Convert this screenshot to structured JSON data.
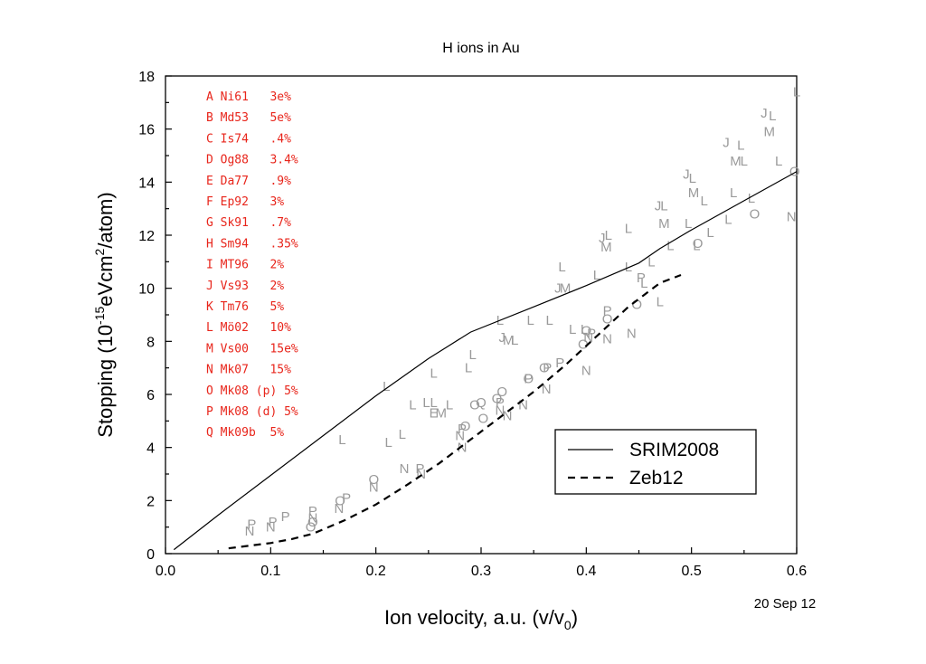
{
  "chart_data": {
    "type": "scatter",
    "title": "H ions in Au",
    "xlabel_main": "Ion velocity, a.u. (v/v",
    "xlabel_sub": "0",
    "xlabel_close": ")",
    "ylabel_pre": "Stopping (10",
    "ylabel_sup1": "-15",
    "ylabel_mid": "eVcm",
    "ylabel_sup2": "2",
    "ylabel_post": "/atom)",
    "date": "20 Sep 12",
    "xlim": [
      0,
      0.6
    ],
    "ylim": [
      0,
      18
    ],
    "xticks": [
      0.0,
      0.1,
      0.2,
      0.3,
      0.4,
      0.5,
      0.6
    ],
    "xtick_labels": [
      "0.0",
      "0.1",
      "0.2",
      "0.3",
      "0.4",
      "0.5",
      "0.6"
    ],
    "yticks": [
      0,
      2,
      4,
      6,
      8,
      10,
      12,
      14,
      16,
      18
    ],
    "ytick_labels": [
      "0",
      "2",
      "4",
      "6",
      "8",
      "10",
      "12",
      "14",
      "16",
      "18"
    ],
    "references": [
      "A Ni61   3e%",
      "B Md53   5e%",
      "C Is74   .4%",
      "D Og88   3.4%",
      "E Da77   .9%",
      "F Ep92   3%",
      "G Sk91   .7%",
      "H Sm94   .35%",
      "I MT96   2%",
      "J Vs93   2%",
      "K Tm76   5%",
      "L Mö02   10%",
      "M Vs00   15e%",
      "N Mk07   15%",
      "O Mk08 (p) 5%",
      "P Mk08 (d) 5%",
      "Q Mk09b  5%"
    ],
    "series": [
      {
        "name": "SRIM2008",
        "style": "solid",
        "x": [
          0.008,
          0.05,
          0.1,
          0.15,
          0.2,
          0.25,
          0.29,
          0.35,
          0.4,
          0.45,
          0.47,
          0.5,
          0.55,
          0.6
        ],
        "y": [
          0.15,
          1.45,
          2.95,
          4.45,
          5.95,
          7.35,
          8.35,
          9.3,
          10.1,
          10.95,
          11.5,
          12.2,
          13.3,
          14.4
        ]
      },
      {
        "name": "Zeb12",
        "style": "dashed",
        "x": [
          0.06,
          0.08,
          0.1,
          0.12,
          0.14,
          0.17,
          0.2,
          0.23,
          0.26,
          0.29,
          0.32,
          0.35,
          0.38,
          0.41,
          0.44,
          0.47,
          0.49
        ],
        "y": [
          0.2,
          0.3,
          0.4,
          0.55,
          0.75,
          1.25,
          1.85,
          2.6,
          3.4,
          4.3,
          5.2,
          6.1,
          7.1,
          8.2,
          9.3,
          10.2,
          10.5
        ]
      }
    ],
    "points": [
      {
        "l": "L",
        "x": 0.168,
        "y": 4.3
      },
      {
        "l": "L",
        "x": 0.212,
        "y": 4.2
      },
      {
        "l": "L",
        "x": 0.225,
        "y": 4.5
      },
      {
        "l": "N",
        "x": 0.227,
        "y": 3.2
      },
      {
        "l": "N",
        "x": 0.243,
        "y": 3.0
      },
      {
        "l": "P",
        "x": 0.242,
        "y": 3.2
      },
      {
        "l": "L",
        "x": 0.21,
        "y": 6.3
      },
      {
        "l": "L",
        "x": 0.235,
        "y": 5.6
      },
      {
        "l": "L",
        "x": 0.248,
        "y": 5.7
      },
      {
        "l": "L",
        "x": 0.255,
        "y": 5.7
      },
      {
        "l": "E",
        "x": 0.255,
        "y": 5.3
      },
      {
        "l": "M",
        "x": 0.262,
        "y": 5.3
      },
      {
        "l": "L",
        "x": 0.27,
        "y": 5.6
      },
      {
        "l": "L",
        "x": 0.255,
        "y": 6.8
      },
      {
        "l": "L",
        "x": 0.288,
        "y": 7.0
      },
      {
        "l": "L",
        "x": 0.292,
        "y": 7.5
      },
      {
        "l": "L",
        "x": 0.318,
        "y": 8.8
      },
      {
        "l": "J",
        "x": 0.32,
        "y": 8.15
      },
      {
        "l": "M",
        "x": 0.326,
        "y": 8.05
      },
      {
        "l": "L",
        "x": 0.332,
        "y": 8.05
      },
      {
        "l": "L",
        "x": 0.347,
        "y": 8.8
      },
      {
        "l": "L",
        "x": 0.365,
        "y": 8.8
      },
      {
        "l": "J",
        "x": 0.373,
        "y": 10.0
      },
      {
        "l": "M",
        "x": 0.38,
        "y": 10.0
      },
      {
        "l": "L",
        "x": 0.377,
        "y": 10.8
      },
      {
        "l": "L",
        "x": 0.387,
        "y": 8.45
      },
      {
        "l": "L",
        "x": 0.398,
        "y": 8.45
      },
      {
        "l": "L",
        "x": 0.41,
        "y": 10.5
      },
      {
        "l": "J",
        "x": 0.415,
        "y": 11.9
      },
      {
        "l": "L",
        "x": 0.421,
        "y": 12.0
      },
      {
        "l": "M",
        "x": 0.419,
        "y": 11.55
      },
      {
        "l": "L",
        "x": 0.44,
        "y": 12.25
      },
      {
        "l": "L",
        "x": 0.44,
        "y": 10.8
      },
      {
        "l": "L",
        "x": 0.455,
        "y": 10.2
      },
      {
        "l": "L",
        "x": 0.462,
        "y": 11.0
      },
      {
        "l": "L",
        "x": 0.47,
        "y": 9.5
      },
      {
        "l": "J",
        "x": 0.468,
        "y": 13.1
      },
      {
        "l": "L",
        "x": 0.474,
        "y": 13.1
      },
      {
        "l": "M",
        "x": 0.474,
        "y": 12.45
      },
      {
        "l": "L",
        "x": 0.48,
        "y": 11.6
      },
      {
        "l": "L",
        "x": 0.497,
        "y": 12.45
      },
      {
        "l": "L",
        "x": 0.505,
        "y": 11.6
      },
      {
        "l": "J",
        "x": 0.495,
        "y": 14.3
      },
      {
        "l": "L",
        "x": 0.501,
        "y": 14.15
      },
      {
        "l": "M",
        "x": 0.502,
        "y": 13.6
      },
      {
        "l": "L",
        "x": 0.512,
        "y": 13.3
      },
      {
        "l": "L",
        "x": 0.518,
        "y": 12.1
      },
      {
        "l": "L",
        "x": 0.535,
        "y": 12.6
      },
      {
        "l": "L",
        "x": 0.54,
        "y": 13.6
      },
      {
        "l": "J",
        "x": 0.533,
        "y": 15.5
      },
      {
        "l": "L",
        "x": 0.547,
        "y": 15.4
      },
      {
        "l": "M",
        "x": 0.542,
        "y": 14.8
      },
      {
        "l": "L",
        "x": 0.55,
        "y": 14.8
      },
      {
        "l": "L",
        "x": 0.557,
        "y": 13.4
      },
      {
        "l": "J",
        "x": 0.569,
        "y": 16.6
      },
      {
        "l": "L",
        "x": 0.577,
        "y": 16.5
      },
      {
        "l": "M",
        "x": 0.574,
        "y": 15.9
      },
      {
        "l": "L",
        "x": 0.583,
        "y": 14.8
      },
      {
        "l": "L",
        "x": 0.6,
        "y": 17.4
      },
      {
        "l": "O",
        "x": 0.56,
        "y": 12.8
      },
      {
        "l": "N",
        "x": 0.595,
        "y": 12.7
      },
      {
        "l": "O",
        "x": 0.598,
        "y": 14.4
      },
      {
        "l": "O",
        "x": 0.506,
        "y": 11.7
      },
      {
        "l": "O",
        "x": 0.448,
        "y": 9.4
      },
      {
        "l": "P",
        "x": 0.452,
        "y": 10.4
      },
      {
        "l": "N",
        "x": 0.443,
        "y": 8.3
      },
      {
        "l": "N",
        "x": 0.42,
        "y": 8.1
      },
      {
        "l": "O",
        "x": 0.42,
        "y": 8.85
      },
      {
        "l": "P",
        "x": 0.42,
        "y": 9.15
      },
      {
        "l": "O",
        "x": 0.4,
        "y": 8.4
      },
      {
        "l": "P",
        "x": 0.405,
        "y": 8.3
      },
      {
        "l": "O",
        "x": 0.397,
        "y": 7.9
      },
      {
        "l": "N",
        "x": 0.402,
        "y": 8.15
      },
      {
        "l": "N",
        "x": 0.4,
        "y": 6.9
      },
      {
        "l": "P",
        "x": 0.375,
        "y": 7.2
      },
      {
        "l": "O",
        "x": 0.36,
        "y": 7.0
      },
      {
        "l": "P",
        "x": 0.363,
        "y": 7.0
      },
      {
        "l": "N",
        "x": 0.362,
        "y": 6.2
      },
      {
        "l": "O",
        "x": 0.345,
        "y": 6.6
      },
      {
        "l": "P",
        "x": 0.345,
        "y": 6.6
      },
      {
        "l": "N",
        "x": 0.34,
        "y": 5.6
      },
      {
        "l": "O",
        "x": 0.32,
        "y": 6.1
      },
      {
        "l": "O",
        "x": 0.315,
        "y": 5.85
      },
      {
        "l": "P",
        "x": 0.318,
        "y": 5.7
      },
      {
        "l": "N",
        "x": 0.318,
        "y": 5.4
      },
      {
        "l": "N",
        "x": 0.325,
        "y": 5.2
      },
      {
        "l": "O",
        "x": 0.294,
        "y": 5.6
      },
      {
        "l": "O",
        "x": 0.302,
        "y": 5.1
      },
      {
        "l": "P",
        "x": 0.282,
        "y": 4.7
      },
      {
        "l": "O",
        "x": 0.285,
        "y": 4.8
      },
      {
        "l": "N",
        "x": 0.28,
        "y": 4.45
      },
      {
        "l": "N",
        "x": 0.282,
        "y": 4.0
      },
      {
        "l": "O",
        "x": 0.198,
        "y": 2.8
      },
      {
        "l": "N",
        "x": 0.198,
        "y": 2.5
      },
      {
        "l": "P",
        "x": 0.172,
        "y": 2.1
      },
      {
        "l": "O",
        "x": 0.166,
        "y": 2.0
      },
      {
        "l": "N",
        "x": 0.165,
        "y": 1.7
      },
      {
        "l": "P",
        "x": 0.14,
        "y": 1.6
      },
      {
        "l": "N",
        "x": 0.14,
        "y": 1.35
      },
      {
        "l": "O",
        "x": 0.14,
        "y": 1.2
      },
      {
        "l": "O",
        "x": 0.138,
        "y": 1.0
      },
      {
        "l": "P",
        "x": 0.114,
        "y": 1.4
      },
      {
        "l": "N",
        "x": 0.1,
        "y": 1.0
      },
      {
        "l": "P",
        "x": 0.102,
        "y": 1.2
      },
      {
        "l": "N",
        "x": 0.08,
        "y": 0.85
      },
      {
        "l": "P",
        "x": 0.082,
        "y": 1.1
      },
      {
        "l": "Q",
        "x": 0.3,
        "y": 5.7
      }
    ]
  }
}
